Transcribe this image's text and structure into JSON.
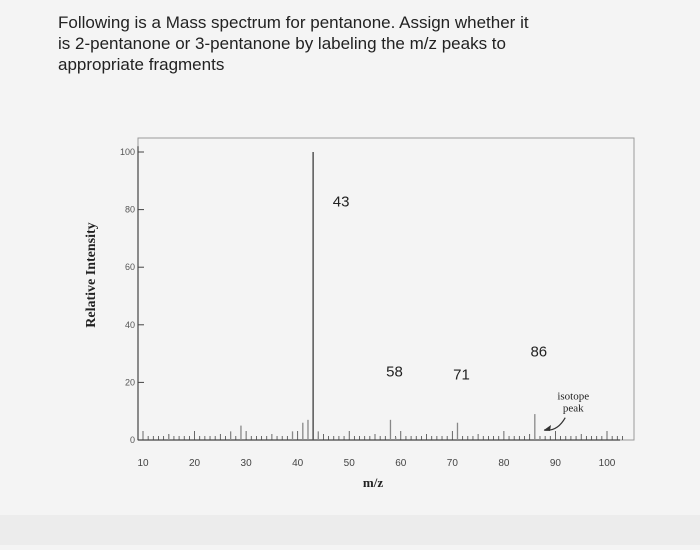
{
  "question": {
    "lines": [
      "Following is a Mass spectrum for pentanone. Assign whether it",
      "is 2-pentanone or 3-pentanone by labeling the m/z peaks to",
      "appropriate fragments"
    ]
  },
  "chart_data": {
    "type": "bar",
    "title": "",
    "xlabel": "m/z",
    "ylabel": "Relative Intensity",
    "xlim": [
      8,
      106
    ],
    "ylim": [
      0,
      105
    ],
    "x_ticks": [
      10,
      20,
      30,
      40,
      50,
      60,
      70,
      80,
      90,
      100
    ],
    "y_ticks": [
      0,
      20,
      40,
      60,
      80,
      100
    ],
    "grid": false,
    "peaks": [
      {
        "x": 15,
        "y": 2
      },
      {
        "x": 27,
        "y": 3
      },
      {
        "x": 29,
        "y": 5
      },
      {
        "x": 39,
        "y": 3
      },
      {
        "x": 41,
        "y": 6
      },
      {
        "x": 42,
        "y": 7
      },
      {
        "x": 43,
        "y": 100
      },
      {
        "x": 44,
        "y": 3
      },
      {
        "x": 58,
        "y": 7
      },
      {
        "x": 59,
        "y": 1
      },
      {
        "x": 71,
        "y": 6
      },
      {
        "x": 86,
        "y": 9
      },
      {
        "x": 87,
        "y": 1
      }
    ],
    "peak_labels": [
      {
        "x": 43,
        "y": 81,
        "text": "43"
      },
      {
        "x": 58,
        "y": 22,
        "text": "58"
      },
      {
        "x": 71,
        "y": 21,
        "text": "71"
      },
      {
        "x": 86,
        "y": 29,
        "text": "86"
      }
    ],
    "annotation": {
      "text_lines": [
        "isotope",
        "peak"
      ],
      "x": 95,
      "y": 14,
      "arrow_to": {
        "x": 87,
        "y": 1
      }
    }
  },
  "colors": {
    "axis": "#444444",
    "peak": "#888888",
    "text": "#222222"
  }
}
